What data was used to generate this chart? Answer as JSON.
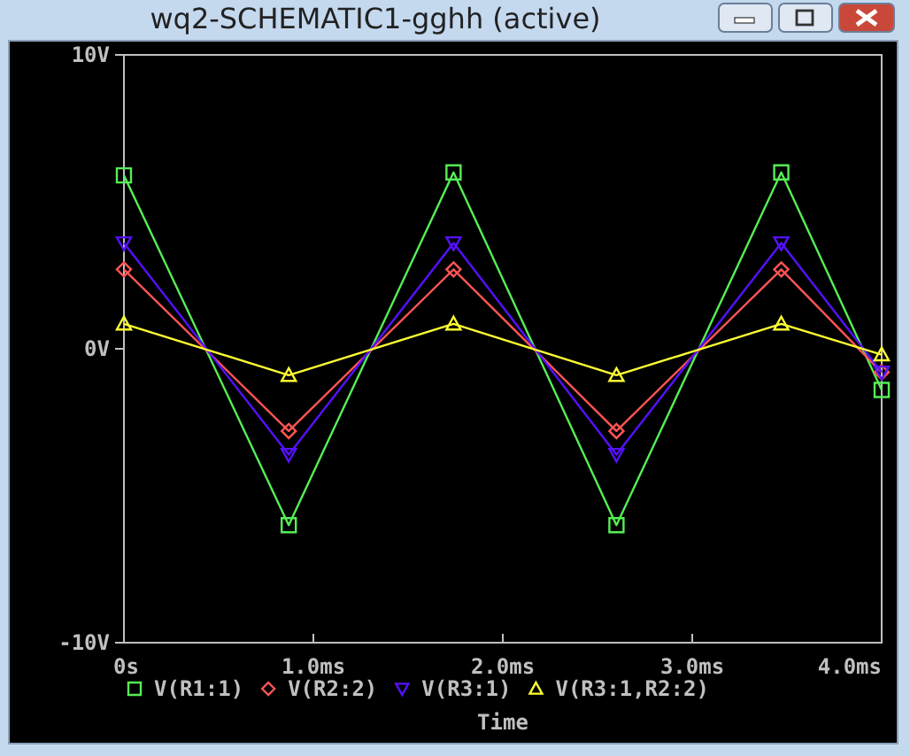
{
  "chart_data": {
    "type": "line",
    "title": "wq2-SCHEMATIC1-gghh (active)",
    "xlabel": "Time",
    "x": [
      0,
      0.87,
      1.74,
      2.6,
      3.47,
      4.0
    ],
    "xlim": [
      0,
      4
    ],
    "xticks": [
      {
        "value": 0,
        "label": "0s"
      },
      {
        "value": 1,
        "label": "1.0ms"
      },
      {
        "value": 2,
        "label": "2.0ms"
      },
      {
        "value": 3,
        "label": "3.0ms"
      },
      {
        "value": 4,
        "label": "4.0ms"
      }
    ],
    "ylim": [
      -10,
      10
    ],
    "yticks": [
      {
        "value": -10,
        "label": "-10V"
      },
      {
        "value": 0,
        "label": "0V"
      },
      {
        "value": 10,
        "label": "10V"
      }
    ],
    "grid": false,
    "legend": "bottom",
    "series": [
      {
        "name": "V(R1:1)",
        "color": "#55ee55",
        "marker": "square",
        "values": [
          5.9,
          -6,
          6,
          -6,
          6,
          -1.4
        ]
      },
      {
        "name": "V(R2:2)",
        "color": "#ff5555",
        "marker": "diamond",
        "values": [
          2.7,
          -2.8,
          2.7,
          -2.8,
          2.7,
          -0.8
        ]
      },
      {
        "name": "V(R3:1)",
        "color": "#5511ff",
        "marker": "triangle-down",
        "values": [
          3.6,
          -3.6,
          3.6,
          -3.6,
          3.6,
          -0.8
        ]
      },
      {
        "name": "V(R3:1,R2:2)",
        "color": "#ffff33",
        "marker": "triangle",
        "values": [
          0.85,
          -0.9,
          0.85,
          -0.9,
          0.85,
          -0.2
        ]
      }
    ]
  }
}
